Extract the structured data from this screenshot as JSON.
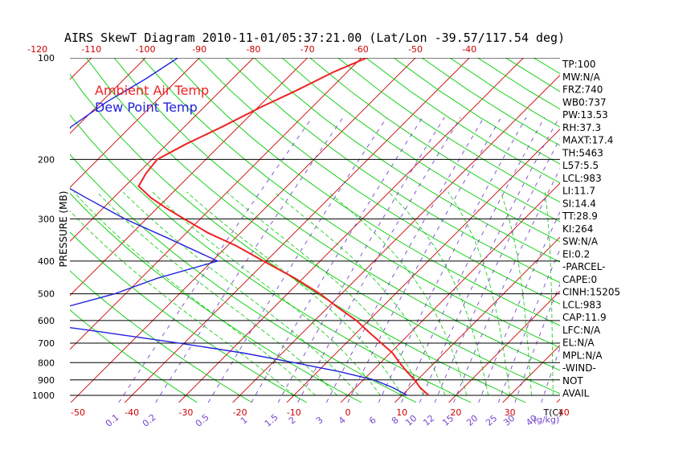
{
  "title": "AIRS SkewT Diagram 2010-11-01/05:37:21.00 (Lat/Lon -39.57/117.54 deg)",
  "legend": [
    {
      "label": "Ambient Air Temp",
      "color": "#ee2222"
    },
    {
      "label": "Dew Point Temp",
      "color": "#2222dd"
    }
  ],
  "colors": {
    "isotherm": "#cc0000",
    "dry_adiabat": "#00cc00",
    "moist_adiabat": "#00cc00",
    "mixing_ratio": "#7744cc",
    "isobar": "#000000",
    "bottom_temp_labels": "#cc0000",
    "top_temp_labels": "#cc0000",
    "mixing_labels": "#7744cc"
  },
  "indices": [
    "TP:100",
    "MW:N/A",
    "FRZ:740",
    "WB0:737",
    "PW:13.53",
    "RH:37.3",
    "MAXT:17.4",
    "TH:5463",
    "L57:5.5",
    "LCL:983",
    "LI:11.7",
    "SI:14.4",
    "TT:28.9",
    "KI:264",
    "SW:N/A",
    "EI:0.2",
    "-PARCEL-",
    "CAPE:0",
    "CINH:15205",
    "LCL:983",
    "CAP:11.9",
    "LFC:N/A",
    "EL:N/A",
    "MPL:N/A",
    "-WIND-",
    "NOT",
    "AVAIL"
  ],
  "chart_data": {
    "type": "line",
    "title": "AIRS SkewT Diagram 2010-11-01/05:37:21.00 (Lat/Lon -39.57/117.54 deg)",
    "ylabel": "PRESSURE (MB)",
    "xlabel": "T(C)",
    "y_scale": "log",
    "y_inverted": true,
    "ylim": [
      1050,
      100
    ],
    "pressure_ticks": [
      100,
      200,
      300,
      400,
      500,
      600,
      700,
      800,
      900,
      1000
    ],
    "bottom_temp_ticks": [
      -50,
      -40,
      -30,
      -20,
      -10,
      0,
      10,
      20,
      30,
      40
    ],
    "top_temp_ticks": [
      -120,
      -110,
      -100,
      -90,
      -80,
      -70,
      -60,
      -50,
      -40
    ],
    "mixing_ratio_ticks": [
      "0.1",
      "0.2",
      "0.5",
      "1",
      "1.5",
      "2",
      "3",
      "4",
      "6",
      "8",
      "10",
      "12",
      "15",
      "20",
      "25",
      "30",
      "40"
    ],
    "mixing_label_units": "(g/kg)",
    "series": [
      {
        "name": "Ambient Air Temp",
        "color": "#ee2222",
        "points": [
          [
            100,
            -59
          ],
          [
            110,
            -62.5
          ],
          [
            125,
            -66
          ],
          [
            140,
            -69.5
          ],
          [
            160,
            -73
          ],
          [
            180,
            -76.5
          ],
          [
            200,
            -79
          ],
          [
            220,
            -78.5
          ],
          [
            240,
            -77.5
          ],
          [
            260,
            -73
          ],
          [
            280,
            -68
          ],
          [
            300,
            -63
          ],
          [
            330,
            -56
          ],
          [
            360,
            -48.5
          ],
          [
            400,
            -40.5
          ],
          [
            450,
            -31.5
          ],
          [
            500,
            -24
          ],
          [
            550,
            -18
          ],
          [
            600,
            -12.3
          ],
          [
            650,
            -7.8
          ],
          [
            700,
            -3.5
          ],
          [
            750,
            0.5
          ],
          [
            800,
            3.5
          ],
          [
            850,
            6.5
          ],
          [
            900,
            9.5
          ],
          [
            950,
            12
          ],
          [
            1000,
            15
          ]
        ]
      },
      {
        "name": "Dew Point Temp",
        "color": "#2222dd",
        "points": [
          [
            100,
            -94
          ],
          [
            115,
            -96
          ],
          [
            135,
            -99
          ],
          [
            160,
            -101
          ],
          [
            185,
            -100
          ],
          [
            210,
            -97
          ],
          [
            240,
            -91
          ],
          [
            260,
            -85
          ],
          [
            300,
            -74
          ],
          [
            340,
            -63
          ],
          [
            400,
            -49
          ],
          [
            450,
            -57
          ],
          [
            500,
            -62
          ],
          [
            550,
            -69
          ],
          [
            600,
            -75
          ],
          [
            650,
            -57
          ],
          [
            700,
            -41
          ],
          [
            750,
            -27
          ],
          [
            800,
            -16
          ],
          [
            850,
            -6
          ],
          [
            900,
            2
          ],
          [
            950,
            7
          ],
          [
            1000,
            11
          ]
        ]
      }
    ]
  }
}
